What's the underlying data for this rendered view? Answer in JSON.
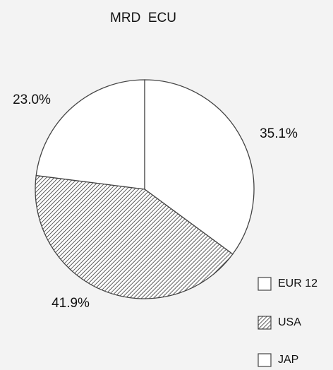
{
  "chart_data": {
    "type": "pie",
    "title": "MRD  ECU",
    "categories": [
      "EUR 12",
      "USA",
      "JAP"
    ],
    "values": [
      35.1,
      41.9,
      23.0
    ],
    "value_labels": [
      "35.1%",
      "41.9%",
      "23.0%"
    ],
    "colors": [
      "#ffffff",
      "#ffffff",
      "#ffffff"
    ],
    "patterns": [
      "none",
      "hatch",
      "none"
    ],
    "legend": "lower right"
  }
}
